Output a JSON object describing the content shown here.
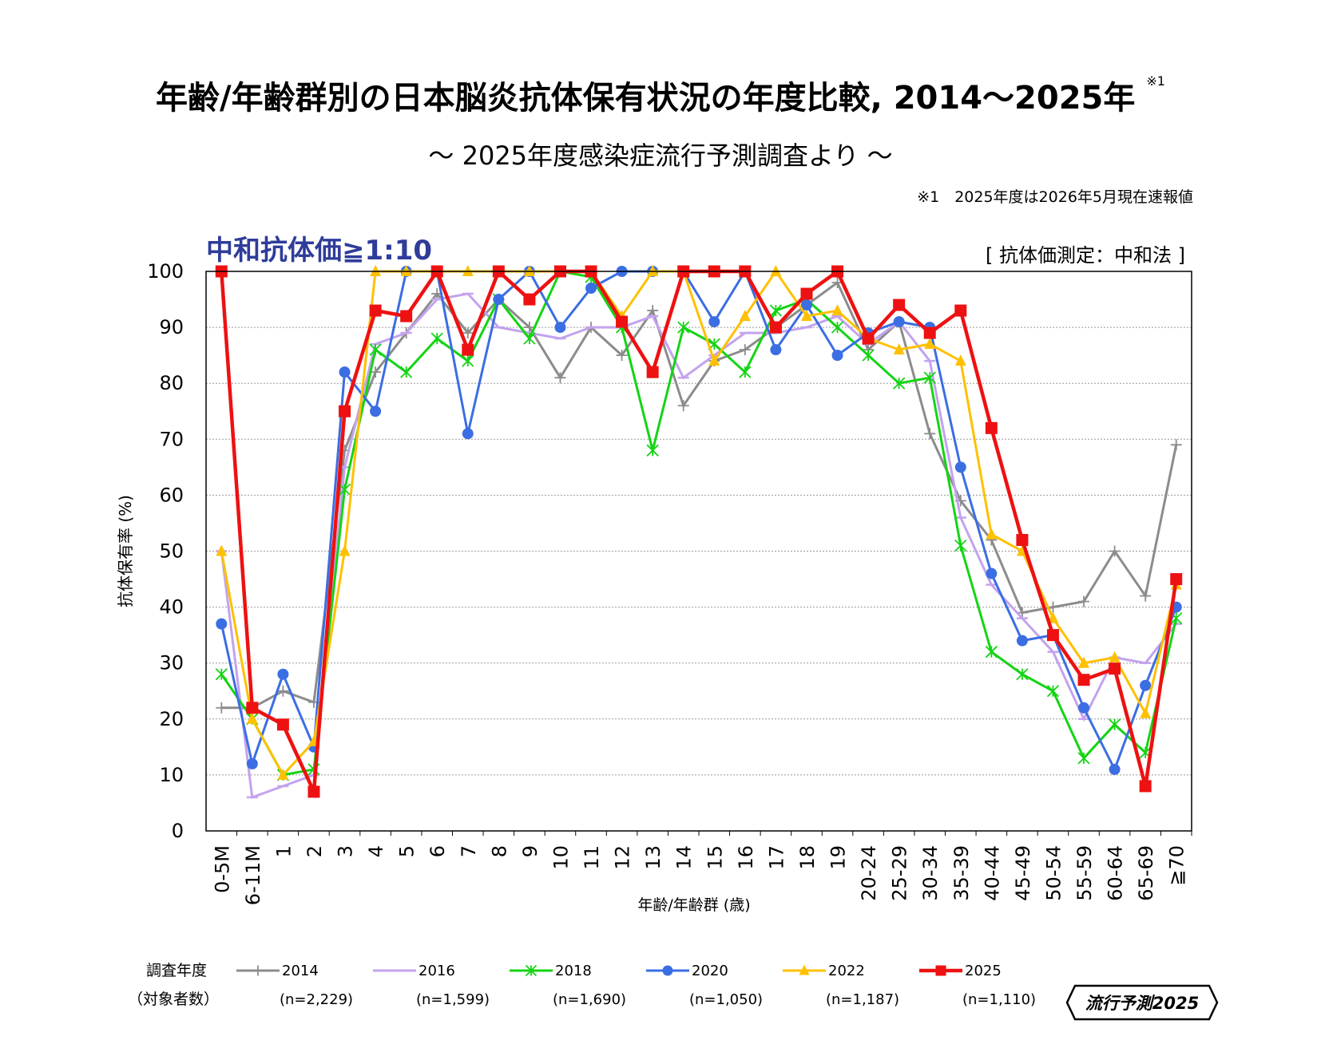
{
  "title": "年齢/年齢群別の日本脳炎抗体保有状況の年度比較, 2014～2025年",
  "title_note": "※1",
  "subtitle": "～ 2025年度感染症流行予測調査より ～",
  "footnote": "※1　2025年度は2026年5月現在速報値",
  "condition_label": "中和抗体価≧1:10",
  "method_label": "[ 抗体価測定：中和法 ]",
  "legend": {
    "header_line1": "調査年度",
    "header_line2": "（対象者数）"
  },
  "badge": "流行予測2025",
  "chart_data": {
    "type": "line",
    "xlabel": "年齢/年齢群 (歳)",
    "ylabel": "抗体保有率 (%)",
    "ylim": [
      0,
      100
    ],
    "yticks": [
      0,
      10,
      20,
      30,
      40,
      50,
      60,
      70,
      80,
      90,
      100
    ],
    "grid": true,
    "categories": [
      "0-5M",
      "6-11M",
      "1",
      "2",
      "3",
      "4",
      "5",
      "6",
      "7",
      "8",
      "9",
      "10",
      "11",
      "12",
      "13",
      "14",
      "15",
      "16",
      "17",
      "18",
      "19",
      "20-24",
      "25-29",
      "30-34",
      "35-39",
      "40-44",
      "45-49",
      "50-54",
      "55-59",
      "60-64",
      "65-69",
      "≧70"
    ],
    "series": [
      {
        "name": "2014",
        "n": "(n=2,229)",
        "color": "#8c8c8c",
        "marker": "plus",
        "values": [
          22,
          22,
          25,
          23,
          68,
          82,
          89,
          96,
          89,
          95,
          90,
          81,
          90,
          85,
          93,
          76,
          84,
          86,
          90,
          94,
          98,
          86,
          91,
          71,
          59,
          52,
          39,
          40,
          41,
          50,
          42,
          69
        ]
      },
      {
        "name": "2016",
        "n": "(n=1,599)",
        "color": "#c3a3ee",
        "marker": "dash",
        "values": [
          50,
          6,
          8,
          10,
          65,
          87,
          89,
          95,
          96,
          90,
          89,
          88,
          90,
          90,
          92,
          81,
          85,
          89,
          89,
          90,
          92,
          87,
          91,
          84,
          56,
          44,
          38,
          32,
          20,
          31,
          30,
          37
        ]
      },
      {
        "name": "2018",
        "n": "(n=1,690)",
        "color": "#14d414",
        "marker": "star",
        "values": [
          28,
          20,
          10,
          11,
          61,
          86,
          82,
          88,
          84,
          95,
          88,
          100,
          99,
          90,
          68,
          90,
          87,
          82,
          93,
          95,
          90,
          85,
          80,
          81,
          51,
          32,
          28,
          25,
          13,
          19,
          14,
          38
        ]
      },
      {
        "name": "2020",
        "n": "(n=1,050)",
        "color": "#3b6ee3",
        "marker": "circle",
        "values": [
          37,
          12,
          28,
          15,
          82,
          75,
          100,
          100,
          71,
          95,
          100,
          90,
          97,
          100,
          100,
          100,
          91,
          100,
          86,
          94,
          85,
          89,
          91,
          90,
          65,
          46,
          34,
          35,
          22,
          11,
          26,
          40
        ]
      },
      {
        "name": "2022",
        "n": "(n=1,187)",
        "color": "#ffc000",
        "marker": "triangle",
        "values": [
          50,
          20,
          10,
          16,
          50,
          100,
          100,
          100,
          100,
          100,
          100,
          100,
          100,
          92,
          100,
          100,
          84,
          92,
          100,
          92,
          93,
          88,
          86,
          87,
          84,
          53,
          50,
          38,
          30,
          31,
          21,
          44
        ]
      },
      {
        "name": "2025",
        "n": "(n=1,110)",
        "color": "#ee1111",
        "marker": "square",
        "values": [
          100,
          22,
          19,
          7,
          75,
          93,
          92,
          100,
          86,
          100,
          95,
          100,
          100,
          91,
          82,
          100,
          100,
          100,
          90,
          96,
          100,
          88,
          94,
          89,
          93,
          72,
          52,
          35,
          27,
          29,
          8,
          45
        ]
      }
    ]
  }
}
